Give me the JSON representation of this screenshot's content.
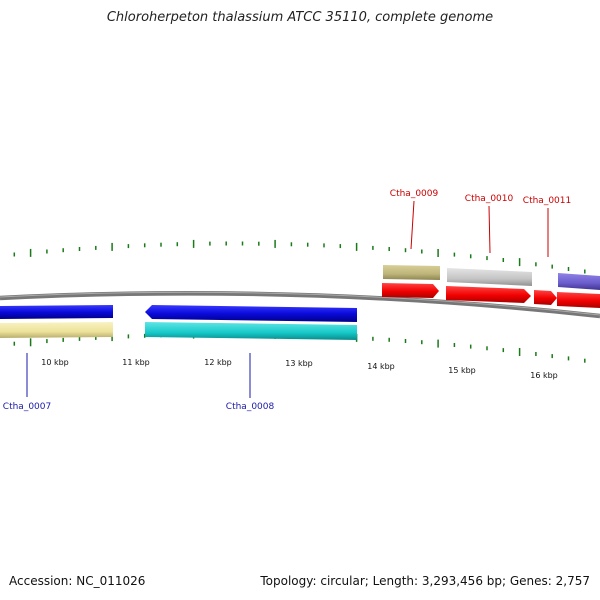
{
  "title": "Chloroherpeton thalassium ATCC 35110, complete genome",
  "footer": {
    "accession": "Accession: NC_011026",
    "summary": "Topology: circular; Length: 3,293,456 bp; Genes: 2,757"
  },
  "colors": {
    "backbone": "#777777",
    "tick": "#1a7a1a",
    "forward_label": "#cc0000",
    "reverse_label": "#1a1aaa",
    "blue": "#0a0adc",
    "yellow": "#efe6a0",
    "cyan": "#16c8c8",
    "olive": "#bdb47a",
    "gray": "#c4c4c4",
    "red": "#f20000",
    "purple": "#6a5ccc"
  },
  "scale": {
    "unit": "kbp",
    "labels": [
      "10 kbp",
      "11 kbp",
      "12 kbp",
      "13 kbp",
      "14 kbp",
      "15 kbp",
      "16 kbp"
    ]
  },
  "gene_labels": {
    "ctha_0007": "Ctha_0007",
    "ctha_0008": "Ctha_0008",
    "ctha_0009": "Ctha_0009",
    "ctha_0010": "Ctha_0010",
    "ctha_0011": "Ctha_0011"
  }
}
